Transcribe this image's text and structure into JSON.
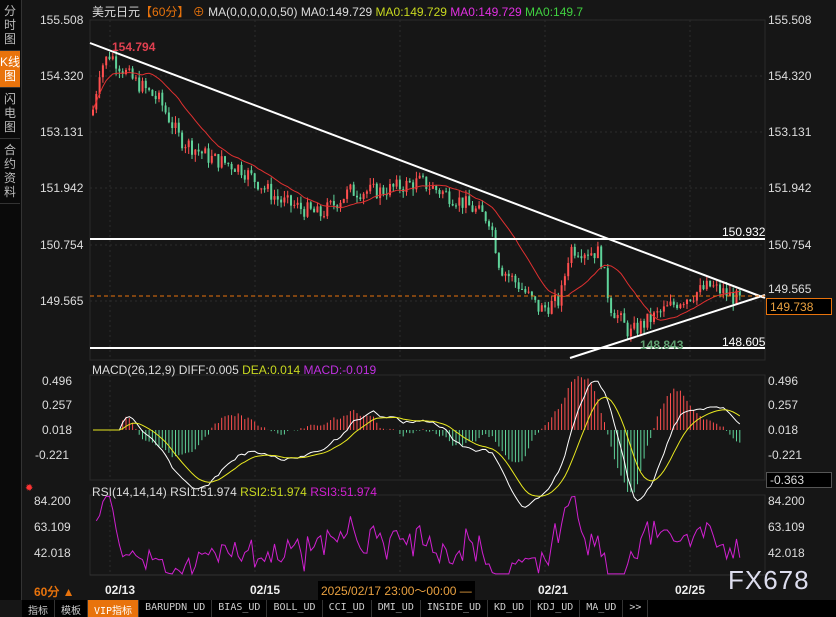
{
  "sidebar": {
    "tabs": [
      "分时图",
      "K线图",
      "闪电图",
      "合约资料"
    ],
    "active": 1
  },
  "header": {
    "symbol": "美元日元",
    "period": "【60分】",
    "ma_label": "MA(0,0,0,0,0,50)",
    "ma0": "MA0:149.729",
    "ma1": "MA0:149.729",
    "ma2": "MA0:149.729",
    "ma3": "MA0:149.7"
  },
  "price_axis": [
    "155.508",
    "154.320",
    "153.131",
    "151.942",
    "150.754",
    "149.565"
  ],
  "annotations": {
    "high": "154.794",
    "low": "148.843",
    "upper_line": "150.932",
    "lower_line": "148.605",
    "current": "149.738"
  },
  "macd": {
    "label": "MACD(26,12,9)",
    "diff": "DIFF:0.005",
    "dea": "DEA:0.014",
    "macd": "MACD:-0.019",
    "axis": [
      "0.496",
      "0.257",
      "0.018",
      "-0.221"
    ],
    "current": "-0.363"
  },
  "rsi": {
    "label": "RSI(14,14,14)",
    "rsi1": "RSI1:51.974",
    "rsi2": "RSI2:51.974",
    "rsi3": "RSI3:51.974",
    "axis": [
      "84.200",
      "63.109",
      "42.018"
    ]
  },
  "x_axis": {
    "period": "60分 ▲",
    "labels": [
      "02/13",
      "02/15",
      "02/21",
      "02/25"
    ],
    "cursor": "2025/02/17 23:00～00:00 —"
  },
  "watermark": "FX678",
  "toolbar": [
    "指标",
    "模板",
    "VIP指标",
    "BARUPDN_UD",
    "BIAS_UD",
    "BOLL_UD",
    "CCI_UD",
    "DMI_UD",
    "INSIDE_UD",
    "KD_UD",
    "KDJ_UD",
    "MA_UD",
    ">>"
  ],
  "colors": {
    "up": "#ff4f4f",
    "down": "#5fd39a",
    "accent": "#e8730c",
    "ma": "#e03030",
    "diff": "#ffffff",
    "dea": "#e8e820",
    "rsi": "#d020d0"
  }
}
